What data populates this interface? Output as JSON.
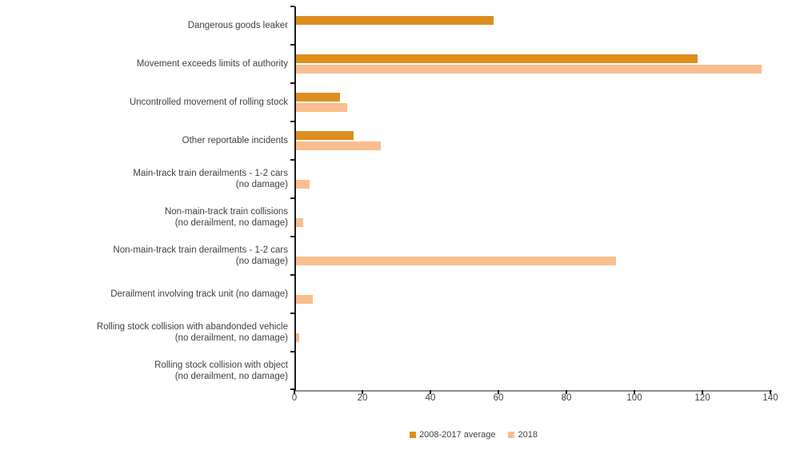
{
  "chart_data": {
    "type": "bar",
    "orientation": "horizontal",
    "title": "",
    "xlabel": "",
    "ylabel": "",
    "xlim": [
      0,
      140
    ],
    "grid": false,
    "legend_position": "bottom-center",
    "categories": [
      {
        "lines": [
          "Dangerous goods leaker"
        ]
      },
      {
        "lines": [
          "Movement exceeds limits of authority"
        ]
      },
      {
        "lines": [
          "Uncontrolled movement of rolling stock"
        ]
      },
      {
        "lines": [
          "Other reportable incidents"
        ]
      },
      {
        "lines": [
          "Main-track train derailments - 1-2 cars",
          "(no damage)"
        ]
      },
      {
        "lines": [
          "Non-main-track train collisions",
          "(no derailment, no damage)"
        ]
      },
      {
        "lines": [
          "Non-main-track train derailments - 1-2 cars",
          "(no damage)"
        ]
      },
      {
        "lines": [
          "Derailment involving track unit (no damage)"
        ]
      },
      {
        "lines": [
          "Rolling stock collision with abandonded vehicle",
          "(no derailment, no damage)"
        ]
      },
      {
        "lines": [
          "Rolling stock collision with object",
          "(no derailment, no damage)"
        ]
      }
    ],
    "series": [
      {
        "name": "2008-2017 average",
        "color": "#DE8E1E",
        "values": [
          58,
          118,
          13,
          17,
          0,
          0,
          0,
          0,
          0,
          0
        ]
      },
      {
        "name": "2018",
        "color": "#FABE8E",
        "values": [
          0,
          137,
          15,
          25,
          4,
          2,
          94,
          5,
          1,
          0
        ]
      }
    ],
    "x_axis": {
      "min": 0,
      "max": 140,
      "tick_interval": 20,
      "ticks": [
        0,
        20,
        40,
        60,
        80,
        100,
        120,
        140
      ],
      "tick_labels": [
        "0",
        "20",
        "40",
        "60",
        "80",
        "100",
        "120",
        "140"
      ]
    },
    "colors": {
      "axis_y": "#1a1a1a",
      "axis_x": "#8c8c8c",
      "tick": "#1a1a1a",
      "text": "#404040",
      "background": "#ffffff"
    }
  }
}
